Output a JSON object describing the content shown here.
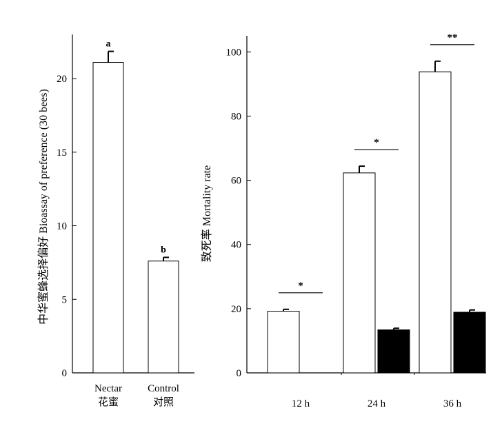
{
  "chart_data": [
    {
      "type": "bar",
      "categories": [
        "Nectar",
        "Control"
      ],
      "category_labels_cn": [
        "花蜜",
        "对照"
      ],
      "values": [
        21.1,
        7.6
      ],
      "errors": [
        0.75,
        0.25
      ],
      "letters": [
        "a",
        "b"
      ],
      "ylabel": "中华蜜蜂选择偏好 Bioassay of preference (30 bees)",
      "ylim": [
        0,
        23
      ],
      "yticks": [
        0,
        5,
        10,
        15,
        20
      ],
      "bar_colors": [
        "#ffffff",
        "#ffffff"
      ],
      "grid": false
    },
    {
      "type": "bar",
      "categories": [
        "12 h",
        "24 h",
        "36 h"
      ],
      "series": [
        {
          "values": [
            19.2,
            62.3,
            93.8
          ],
          "errors": [
            0.6,
            2.1,
            3.3
          ],
          "color": "#ffffff"
        },
        {
          "values": [
            0,
            13.4,
            18.9
          ],
          "errors": [
            0,
            0.5,
            0.7
          ],
          "color": "#000000"
        }
      ],
      "significance": [
        "*",
        "*",
        "**"
      ],
      "ylabel": "致死率 Mortality rate",
      "ylim": [
        0,
        105
      ],
      "yticks": [
        0,
        20,
        40,
        60,
        80,
        100
      ],
      "grid": false
    }
  ]
}
